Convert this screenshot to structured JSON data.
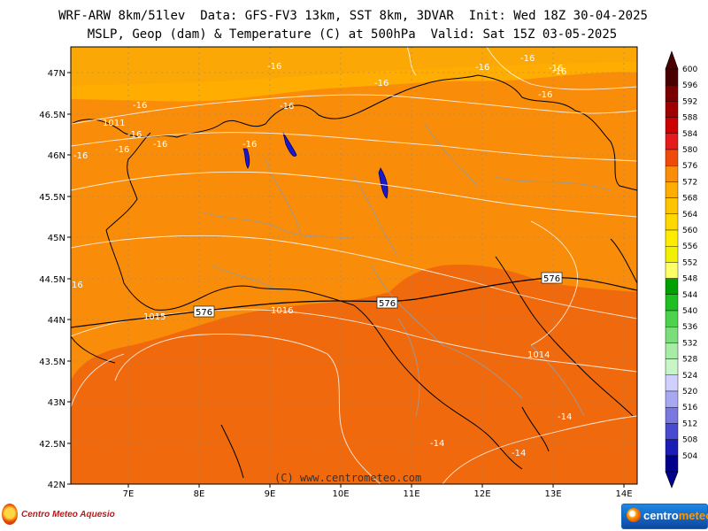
{
  "header": {
    "title_line1": "WRF-ARW 8km/51lev  Data: GFS-FV3 13km, SST 8km, 3DVAR  Init: Wed 18Z 30-04-2025",
    "title_line2": "MSLP, Geop (dam) & Temperature (C) at 500hPa  Valid: Sat 15Z 03-05-2025"
  },
  "map": {
    "lat_labels": [
      "47N",
      "46.5N",
      "46N",
      "45.5N",
      "45N",
      "44.5N",
      "44N",
      "43.5N",
      "43N",
      "42.5N",
      "42N"
    ],
    "lon_labels": [
      "7E",
      "8E",
      "9E",
      "10E",
      "11E",
      "12E",
      "13E",
      "14E"
    ],
    "fill_colors": {
      "c572": "#ffad00",
      "c576": "#f98c09",
      "c580": "#f06a0d"
    },
    "isobar_labels": [
      {
        "text": "1011"
      },
      {
        "text": "1015"
      },
      {
        "text": "1016"
      },
      {
        "text": "1014"
      }
    ],
    "geop_labels": [
      {
        "text": "576"
      },
      {
        "text": "576"
      },
      {
        "text": "576"
      }
    ],
    "temp_labels": [
      "-16",
      "-16",
      "-16",
      "-16",
      "-16",
      "-16",
      "-16",
      "-16",
      "-16",
      "-16",
      "-16",
      "-16",
      "-16",
      "-16",
      "-14",
      "-14",
      "-14",
      "16"
    ],
    "copyright": "(C) www.centrometeo.com"
  },
  "colorbar": {
    "values": [
      "600",
      "596",
      "592",
      "588",
      "584",
      "580",
      "576",
      "572",
      "568",
      "564",
      "560",
      "556",
      "552",
      "548",
      "544",
      "540",
      "536",
      "532",
      "528",
      "524",
      "520",
      "516",
      "512",
      "508",
      "504"
    ],
    "colors": [
      "#4a0000",
      "#7a0000",
      "#a00000",
      "#cc0000",
      "#e41a1c",
      "#f04a0a",
      "#f98c09",
      "#ffad00",
      "#ffc400",
      "#ffd800",
      "#ffec00",
      "#f0f000",
      "#ffff66",
      "#00a000",
      "#1fbf1f",
      "#4cd24c",
      "#7adf7a",
      "#a6eca6",
      "#c8f5c8",
      "#d0d0ff",
      "#a8a8f0",
      "#7878e0",
      "#4a4ad0",
      "#1c1cb8",
      "#00008c"
    ]
  },
  "logos": {
    "left": "Centro Meteo Aquesio",
    "right_a": "centro",
    "right_b": "meteo"
  }
}
